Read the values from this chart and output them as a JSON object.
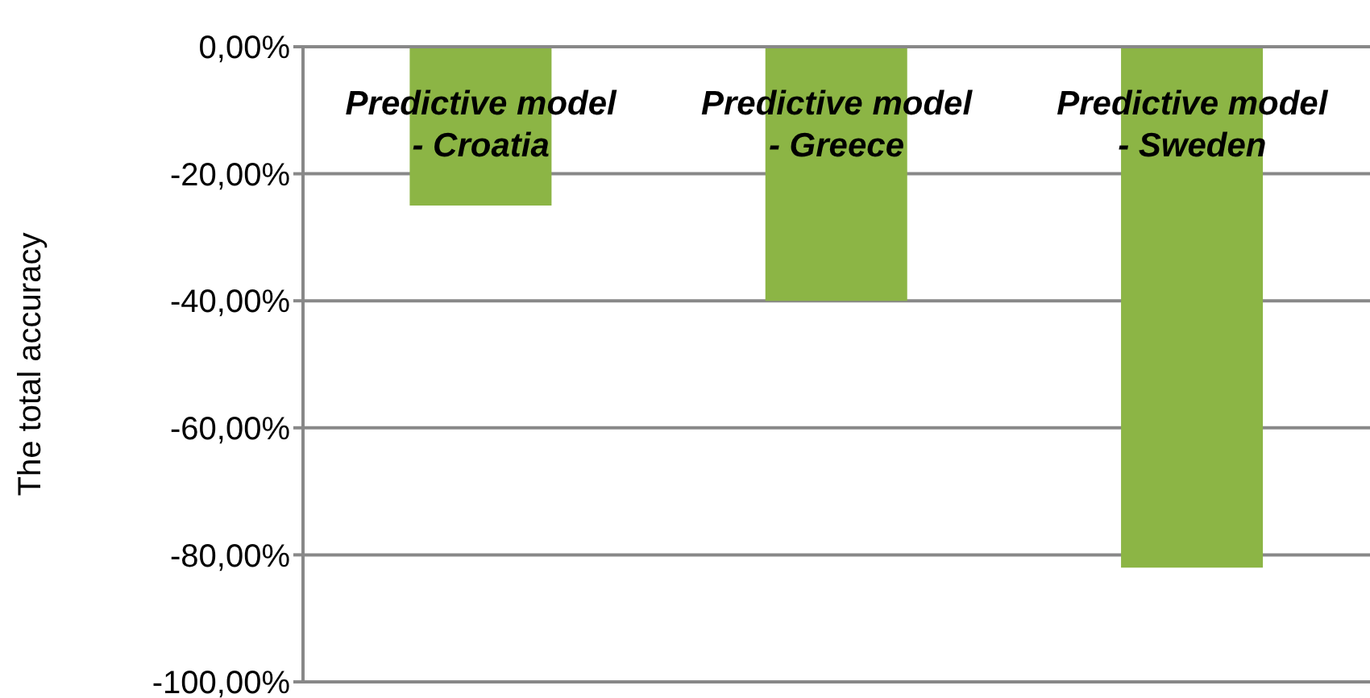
{
  "chart_data": {
    "type": "bar",
    "ylabel": "The total accuracy",
    "categories": [
      "Predictive model - Croatia",
      "Predictive model - Greece",
      "Predictive model - Sweden"
    ],
    "values": [
      -25,
      -40,
      -82
    ],
    "color": "#8cb545",
    "ylim": [
      -100,
      0
    ],
    "yticks": [
      {
        "value": -100,
        "label": "-100,00%"
      },
      {
        "value": -80,
        "label": "-80,00%"
      },
      {
        "value": -60,
        "label": "-60,00%"
      },
      {
        "value": -40,
        "label": "-40,00%"
      },
      {
        "value": -20,
        "label": "-20,00%"
      },
      {
        "value": 0,
        "label": "0,00%"
      }
    ],
    "grid": "y",
    "legend": false
  }
}
